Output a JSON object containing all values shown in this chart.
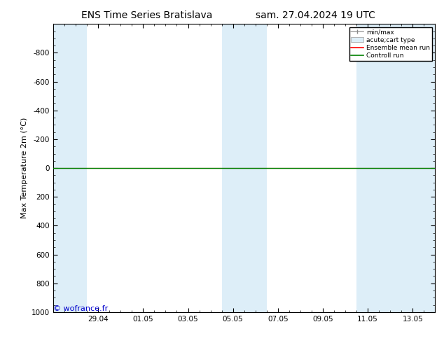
{
  "title_left": "ENS Time Series Bratislava",
  "title_right": "sam. 27.04.2024 19 UTC",
  "ylabel": "Max Temperature 2m (°C)",
  "background_color": "#ffffff",
  "plot_bg_color": "#ffffff",
  "ylim_bottom": 1000,
  "ylim_top": -1000,
  "yticks": [
    -800,
    -600,
    -400,
    -200,
    0,
    200,
    400,
    600,
    800,
    1000
  ],
  "xtick_labels": [
    "29.04",
    "01.05",
    "03.05",
    "05.05",
    "07.05",
    "09.05",
    "11.05",
    "13.05"
  ],
  "xtick_positions": [
    2,
    4,
    6,
    8,
    10,
    12,
    14,
    16
  ],
  "x_min": 0,
  "x_max": 17,
  "band1_x0": 0,
  "band1_x1": 1.5,
  "band2_x0": 7.5,
  "band2_x1": 9.5,
  "band3_x0": 13.5,
  "band3_x1": 17,
  "band_color": "#ddeef8",
  "green_line_y": 0,
  "watermark": "© wofrance.fr",
  "watermark_color": "#0000cc",
  "legend_labels": [
    "min/max",
    "acute;cart type",
    "Ensemble mean run",
    "Controll run"
  ],
  "border_color": "#000000",
  "tick_color": "#000000",
  "title_fontsize": 10,
  "label_fontsize": 8,
  "tick_fontsize": 7.5
}
